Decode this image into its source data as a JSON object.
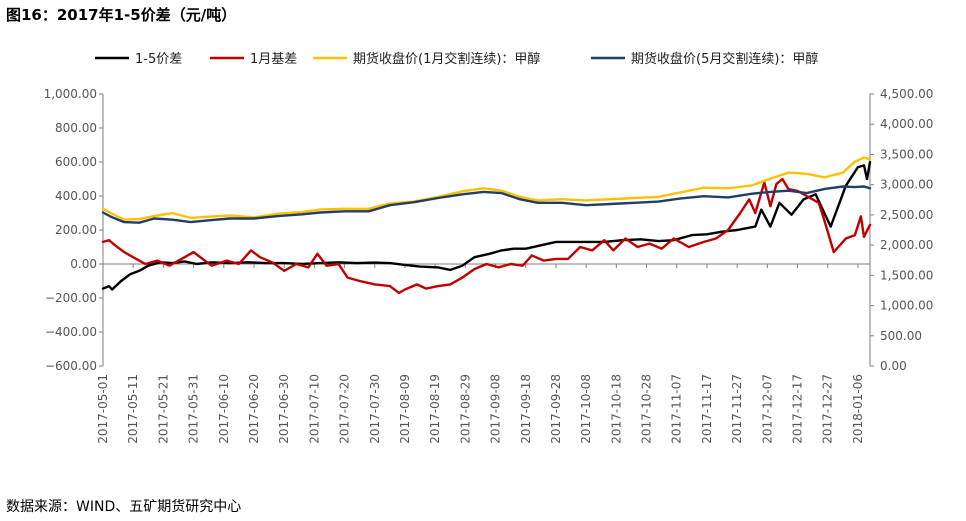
{
  "figure": {
    "title": "图16：2017年1-5价差（元/吨）",
    "source": "数据来源：WIND、五矿期货研究中心"
  },
  "colors": {
    "spread_1_5": "#000000",
    "basis_1": "#c00000",
    "close_jan": "#ffc000",
    "close_may": "#1f3f6b",
    "axis": "#7f7f7f"
  },
  "chart_data": {
    "type": "line",
    "title": "",
    "xlabel": "",
    "ylabel": "",
    "legend_placement": "top",
    "grid": false,
    "x_ticks": [
      "2017-05-01",
      "2017-05-11",
      "2017-05-21",
      "2017-05-31",
      "2017-06-10",
      "2017-06-20",
      "2017-06-30",
      "2017-07-10",
      "2017-07-20",
      "2017-07-30",
      "2017-08-09",
      "2017-08-19",
      "2017-08-29",
      "2017-09-08",
      "2017-09-18",
      "2017-09-28",
      "2017-10-08",
      "2017-10-18",
      "2017-10-28",
      "2017-11-07",
      "2017-11-17",
      "2017-11-27",
      "2017-12-07",
      "2017-12-17",
      "2017-12-27",
      "2018-01-06"
    ],
    "x_range": [
      "2017-05-01",
      "2018-01-10"
    ],
    "y_left": {
      "min": -600,
      "max": 1000,
      "ticks": [
        -600,
        -400,
        -200,
        0,
        200,
        400,
        600,
        800,
        1000
      ],
      "tick_labels": [
        "−600.00",
        "−400.00",
        "−200.00",
        "0.00",
        "200.00",
        "400.00",
        "600.00",
        "800.00",
        "1,000.00"
      ]
    },
    "y_right": {
      "min": 0,
      "max": 4500,
      "ticks": [
        0,
        500,
        1000,
        1500,
        2000,
        2500,
        3000,
        3500,
        4000,
        4500
      ],
      "tick_labels": [
        "0.00",
        "500.00",
        "1,000.00",
        "1,500.00",
        "2,000.00",
        "2,500.00",
        "3,000.00",
        "3,500.00",
        "4,000.00",
        "4,500.00"
      ]
    },
    "series": [
      {
        "name": "1-5价差",
        "axis": "left",
        "color": "#000000",
        "points": [
          [
            "2017-05-01",
            -145
          ],
          [
            "2017-05-03",
            -130
          ],
          [
            "2017-05-04",
            -150
          ],
          [
            "2017-05-07",
            -100
          ],
          [
            "2017-05-10",
            -60
          ],
          [
            "2017-05-13",
            -40
          ],
          [
            "2017-05-16",
            -10
          ],
          [
            "2017-05-20",
            10
          ],
          [
            "2017-05-24",
            5
          ],
          [
            "2017-05-28",
            15
          ],
          [
            "2017-06-01",
            0
          ],
          [
            "2017-06-06",
            10
          ],
          [
            "2017-06-12",
            5
          ],
          [
            "2017-06-18",
            10
          ],
          [
            "2017-06-24",
            5
          ],
          [
            "2017-06-30",
            5
          ],
          [
            "2017-07-06",
            0
          ],
          [
            "2017-07-12",
            5
          ],
          [
            "2017-07-18",
            10
          ],
          [
            "2017-07-24",
            5
          ],
          [
            "2017-07-30",
            8
          ],
          [
            "2017-08-04",
            5
          ],
          [
            "2017-08-09",
            -5
          ],
          [
            "2017-08-14",
            -15
          ],
          [
            "2017-08-20",
            -20
          ],
          [
            "2017-08-24",
            -35
          ],
          [
            "2017-08-28",
            -10
          ],
          [
            "2017-09-01",
            40
          ],
          [
            "2017-09-06",
            60
          ],
          [
            "2017-09-10",
            80
          ],
          [
            "2017-09-14",
            90
          ],
          [
            "2017-09-18",
            90
          ],
          [
            "2017-09-23",
            110
          ],
          [
            "2017-09-28",
            130
          ],
          [
            "2017-10-03",
            130
          ],
          [
            "2017-10-08",
            130
          ],
          [
            "2017-10-14",
            130
          ],
          [
            "2017-10-20",
            140
          ],
          [
            "2017-10-26",
            145
          ],
          [
            "2017-11-01",
            135
          ],
          [
            "2017-11-06",
            140
          ],
          [
            "2017-11-12",
            170
          ],
          [
            "2017-11-17",
            175
          ],
          [
            "2017-11-22",
            190
          ],
          [
            "2017-11-27",
            200
          ],
          [
            "2017-12-03",
            220
          ],
          [
            "2017-12-05",
            320
          ],
          [
            "2017-12-08",
            220
          ],
          [
            "2017-12-11",
            360
          ],
          [
            "2017-12-15",
            290
          ],
          [
            "2017-12-19",
            380
          ],
          [
            "2017-12-23",
            410
          ],
          [
            "2017-12-28",
            220
          ],
          [
            "2018-01-02",
            460
          ],
          [
            "2018-01-06",
            570
          ],
          [
            "2018-01-08",
            580
          ],
          [
            "2018-01-09",
            500
          ],
          [
            "2018-01-10",
            600
          ]
        ]
      },
      {
        "name": "1月基差",
        "axis": "left",
        "color": "#c00000",
        "points": [
          [
            "2017-05-01",
            130
          ],
          [
            "2017-05-03",
            140
          ],
          [
            "2017-05-05",
            110
          ],
          [
            "2017-05-08",
            70
          ],
          [
            "2017-05-12",
            30
          ],
          [
            "2017-05-15",
            0
          ],
          [
            "2017-05-19",
            20
          ],
          [
            "2017-05-23",
            -10
          ],
          [
            "2017-05-27",
            30
          ],
          [
            "2017-05-31",
            70
          ],
          [
            "2017-06-03",
            30
          ],
          [
            "2017-06-06",
            -10
          ],
          [
            "2017-06-11",
            20
          ],
          [
            "2017-06-15",
            0
          ],
          [
            "2017-06-19",
            80
          ],
          [
            "2017-06-22",
            40
          ],
          [
            "2017-06-26",
            10
          ],
          [
            "2017-06-30",
            -40
          ],
          [
            "2017-07-04",
            0
          ],
          [
            "2017-07-08",
            -20
          ],
          [
            "2017-07-11",
            60
          ],
          [
            "2017-07-14",
            -10
          ],
          [
            "2017-07-18",
            0
          ],
          [
            "2017-07-21",
            -80
          ],
          [
            "2017-07-25",
            -100
          ],
          [
            "2017-07-30",
            -120
          ],
          [
            "2017-08-04",
            -130
          ],
          [
            "2017-08-07",
            -170
          ],
          [
            "2017-08-09",
            -150
          ],
          [
            "2017-08-13",
            -120
          ],
          [
            "2017-08-16",
            -145
          ],
          [
            "2017-08-20",
            -130
          ],
          [
            "2017-08-24",
            -120
          ],
          [
            "2017-08-28",
            -80
          ],
          [
            "2017-09-01",
            -30
          ],
          [
            "2017-09-05",
            0
          ],
          [
            "2017-09-09",
            -20
          ],
          [
            "2017-09-13",
            0
          ],
          [
            "2017-09-17",
            -10
          ],
          [
            "2017-09-20",
            50
          ],
          [
            "2017-09-24",
            20
          ],
          [
            "2017-09-28",
            30
          ],
          [
            "2017-10-02",
            30
          ],
          [
            "2017-10-06",
            100
          ],
          [
            "2017-10-10",
            80
          ],
          [
            "2017-10-14",
            140
          ],
          [
            "2017-10-17",
            80
          ],
          [
            "2017-10-21",
            150
          ],
          [
            "2017-10-25",
            100
          ],
          [
            "2017-10-29",
            120
          ],
          [
            "2017-11-02",
            90
          ],
          [
            "2017-11-06",
            150
          ],
          [
            "2017-11-11",
            100
          ],
          [
            "2017-11-16",
            130
          ],
          [
            "2017-11-20",
            150
          ],
          [
            "2017-11-24",
            200
          ],
          [
            "2017-11-28",
            300
          ],
          [
            "2017-12-01",
            380
          ],
          [
            "2017-12-03",
            300
          ],
          [
            "2017-12-06",
            480
          ],
          [
            "2017-12-08",
            340
          ],
          [
            "2017-12-10",
            470
          ],
          [
            "2017-12-12",
            500
          ],
          [
            "2017-12-14",
            440
          ],
          [
            "2017-12-17",
            430
          ],
          [
            "2017-12-20",
            400
          ],
          [
            "2017-12-24",
            360
          ],
          [
            "2017-12-26",
            250
          ],
          [
            "2017-12-29",
            70
          ],
          [
            "2018-01-02",
            150
          ],
          [
            "2018-01-05",
            170
          ],
          [
            "2018-01-07",
            280
          ],
          [
            "2018-01-08",
            160
          ],
          [
            "2018-01-10",
            230
          ]
        ]
      },
      {
        "name": "期货收盘价(1月交割连续)：甲醇",
        "axis": "right",
        "color": "#ffc000",
        "points": [
          [
            "2017-05-01",
            2600
          ],
          [
            "2017-05-04",
            2520
          ],
          [
            "2017-05-08",
            2420
          ],
          [
            "2017-05-13",
            2430
          ],
          [
            "2017-05-18",
            2480
          ],
          [
            "2017-05-24",
            2530
          ],
          [
            "2017-05-30",
            2450
          ],
          [
            "2017-06-05",
            2470
          ],
          [
            "2017-06-12",
            2490
          ],
          [
            "2017-06-20",
            2460
          ],
          [
            "2017-06-28",
            2520
          ],
          [
            "2017-07-06",
            2550
          ],
          [
            "2017-07-12",
            2590
          ],
          [
            "2017-07-20",
            2600
          ],
          [
            "2017-07-28",
            2600
          ],
          [
            "2017-08-04",
            2690
          ],
          [
            "2017-08-12",
            2720
          ],
          [
            "2017-08-20",
            2800
          ],
          [
            "2017-08-28",
            2890
          ],
          [
            "2017-09-04",
            2940
          ],
          [
            "2017-09-10",
            2900
          ],
          [
            "2017-09-16",
            2800
          ],
          [
            "2017-09-22",
            2740
          ],
          [
            "2017-09-30",
            2760
          ],
          [
            "2017-10-08",
            2740
          ],
          [
            "2017-10-16",
            2760
          ],
          [
            "2017-10-24",
            2780
          ],
          [
            "2017-11-01",
            2800
          ],
          [
            "2017-11-08",
            2870
          ],
          [
            "2017-11-16",
            2950
          ],
          [
            "2017-11-24",
            2940
          ],
          [
            "2017-12-02",
            2990
          ],
          [
            "2017-12-08",
            3100
          ],
          [
            "2017-12-14",
            3200
          ],
          [
            "2017-12-20",
            3180
          ],
          [
            "2017-12-26",
            3120
          ],
          [
            "2018-01-01",
            3200
          ],
          [
            "2018-01-05",
            3380
          ],
          [
            "2018-01-08",
            3450
          ],
          [
            "2018-01-10",
            3420
          ]
        ]
      },
      {
        "name": "期货收盘价(5月交割连续)：甲醇",
        "axis": "right",
        "color": "#1f3f6b",
        "points": [
          [
            "2017-05-01",
            2540
          ],
          [
            "2017-05-04",
            2460
          ],
          [
            "2017-05-08",
            2380
          ],
          [
            "2017-05-13",
            2370
          ],
          [
            "2017-05-18",
            2440
          ],
          [
            "2017-05-24",
            2420
          ],
          [
            "2017-05-30",
            2380
          ],
          [
            "2017-06-05",
            2410
          ],
          [
            "2017-06-12",
            2440
          ],
          [
            "2017-06-20",
            2440
          ],
          [
            "2017-06-28",
            2480
          ],
          [
            "2017-07-06",
            2510
          ],
          [
            "2017-07-12",
            2540
          ],
          [
            "2017-07-20",
            2560
          ],
          [
            "2017-07-28",
            2560
          ],
          [
            "2017-08-04",
            2660
          ],
          [
            "2017-08-12",
            2710
          ],
          [
            "2017-08-20",
            2780
          ],
          [
            "2017-08-28",
            2840
          ],
          [
            "2017-09-04",
            2880
          ],
          [
            "2017-09-10",
            2860
          ],
          [
            "2017-09-16",
            2760
          ],
          [
            "2017-09-22",
            2700
          ],
          [
            "2017-09-30",
            2700
          ],
          [
            "2017-10-08",
            2660
          ],
          [
            "2017-10-16",
            2680
          ],
          [
            "2017-10-24",
            2700
          ],
          [
            "2017-11-01",
            2720
          ],
          [
            "2017-11-08",
            2770
          ],
          [
            "2017-11-16",
            2810
          ],
          [
            "2017-11-24",
            2790
          ],
          [
            "2017-12-02",
            2850
          ],
          [
            "2017-12-08",
            2880
          ],
          [
            "2017-12-14",
            2900
          ],
          [
            "2017-12-20",
            2860
          ],
          [
            "2017-12-26",
            2930
          ],
          [
            "2018-01-01",
            2970
          ],
          [
            "2018-01-05",
            2960
          ],
          [
            "2018-01-08",
            2970
          ],
          [
            "2018-01-10",
            2940
          ]
        ]
      }
    ]
  }
}
